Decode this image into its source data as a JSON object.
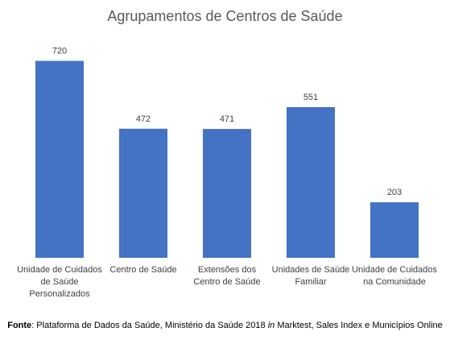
{
  "chart_data": {
    "type": "bar",
    "title": "Agrupamentos de Centros de Saúde",
    "categories": [
      [
        "Unidade de Cuidados",
        "de Saúde",
        "Personalizados"
      ],
      [
        "Centro de Saúde"
      ],
      [
        "Extensões dos",
        "Centro de Saúde"
      ],
      [
        "Unidades de Saúde",
        "Familiar"
      ],
      [
        "Unidade de Cuidados",
        "na Comunidade"
      ]
    ],
    "values": [
      720,
      472,
      471,
      551,
      203
    ],
    "ylim": [
      0,
      800
    ],
    "bar_color": "#4472C4",
    "grid": false,
    "legend": "none"
  },
  "source": {
    "label": "Fonte",
    "text_before": ": Plataforma de Dados da Saúde, Ministério da Saúde 2018 ",
    "text_italic": "in",
    "text_after": " Marktest, Sales Index e Municípios Online"
  }
}
